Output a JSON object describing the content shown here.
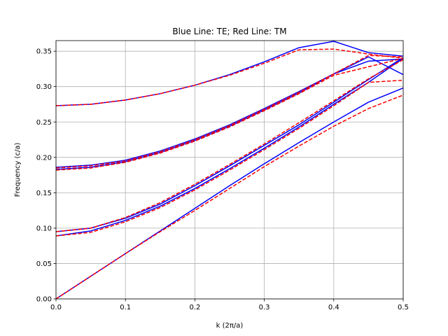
{
  "chart_data": {
    "type": "line",
    "title": "Blue Line: TE; Red Line: TM",
    "xlabel": "k (2π/a)",
    "ylabel": "Frequency (c/a)",
    "xlim": [
      0,
      0.5
    ],
    "ylim": [
      0,
      0.365
    ],
    "xticks": [
      0.0,
      0.1,
      0.2,
      0.3,
      0.4,
      0.5
    ],
    "xtick_labels": [
      "0.0",
      "0.1",
      "0.2",
      "0.3",
      "0.4",
      "0.5"
    ],
    "yticks": [
      0.0,
      0.05,
      0.1,
      0.15,
      0.2,
      0.25,
      0.3,
      0.35
    ],
    "ytick_labels": [
      "0.00",
      "0.05",
      "0.10",
      "0.15",
      "0.20",
      "0.25",
      "0.30",
      "0.35"
    ],
    "grid": true,
    "x": [
      0,
      0.05,
      0.1,
      0.15,
      0.2,
      0.25,
      0.3,
      0.35,
      0.4,
      0.45,
      0.5
    ],
    "series": [
      {
        "color": "#0000ff",
        "style": "solid",
        "values": [
          0.0,
          0.032,
          0.064,
          0.096,
          0.128,
          0.16,
          0.191,
          0.221,
          0.25,
          0.278,
          0.298
        ]
      },
      {
        "color": "#0000ff",
        "style": "solid",
        "values": [
          0.089,
          0.096,
          0.111,
          0.131,
          0.156,
          0.184,
          0.213,
          0.243,
          0.275,
          0.306,
          0.34
        ]
      },
      {
        "color": "#0000ff",
        "style": "solid",
        "values": [
          0.095,
          0.1,
          0.114,
          0.134,
          0.16,
          0.188,
          0.217,
          0.246,
          0.278,
          0.31,
          0.341
        ]
      },
      {
        "color": "#0000ff",
        "style": "solid",
        "values": [
          0.183,
          0.186,
          0.194,
          0.207,
          0.224,
          0.244,
          0.267,
          0.291,
          0.318,
          0.336,
          0.339
        ]
      },
      {
        "color": "#0000ff",
        "style": "solid",
        "values": [
          0.186,
          0.189,
          0.196,
          0.209,
          0.226,
          0.246,
          0.269,
          0.293,
          0.318,
          0.342,
          0.317
        ]
      },
      {
        "color": "#0000ff",
        "style": "solid",
        "values": [
          0.273,
          0.275,
          0.281,
          0.29,
          0.302,
          0.317,
          0.335,
          0.355,
          0.364,
          0.348,
          0.343
        ]
      },
      {
        "color": "#ff0000",
        "style": "dashed",
        "values": [
          0.0,
          0.032,
          0.064,
          0.095,
          0.125,
          0.156,
          0.187,
          0.216,
          0.244,
          0.269,
          0.288
        ]
      },
      {
        "color": "#ff0000",
        "style": "dashed",
        "values": [
          0.089,
          0.094,
          0.109,
          0.129,
          0.154,
          0.182,
          0.211,
          0.241,
          0.273,
          0.306,
          0.309
        ]
      },
      {
        "color": "#ff0000",
        "style": "dashed",
        "values": [
          0.095,
          0.1,
          0.115,
          0.136,
          0.162,
          0.19,
          0.219,
          0.249,
          0.28,
          0.311,
          0.338
        ]
      },
      {
        "color": "#ff0000",
        "style": "dashed",
        "values": [
          0.182,
          0.185,
          0.193,
          0.206,
          0.223,
          0.243,
          0.266,
          0.29,
          0.316,
          0.328,
          0.34
        ]
      },
      {
        "color": "#ff0000",
        "style": "dashed",
        "values": [
          0.185,
          0.188,
          0.195,
          0.208,
          0.225,
          0.245,
          0.268,
          0.292,
          0.318,
          0.344,
          0.342
        ]
      },
      {
        "color": "#ff0000",
        "style": "dashed",
        "values": [
          0.273,
          0.275,
          0.281,
          0.29,
          0.302,
          0.316,
          0.333,
          0.352,
          0.353,
          0.346,
          0.34
        ]
      }
    ]
  }
}
